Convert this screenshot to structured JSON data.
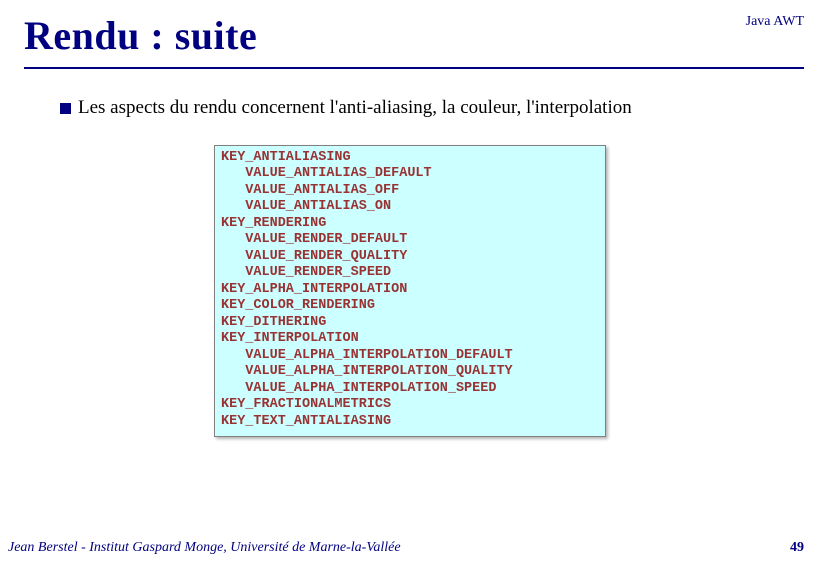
{
  "header": {
    "title": "Rendu : suite",
    "topic": "Java AWT"
  },
  "bullet": {
    "text": "Les aspects du rendu concernent l'anti-aliasing, la couleur, l'interpolation"
  },
  "code": {
    "lines": [
      "KEY_ANTIALIASING",
      "   VALUE_ANTIALIAS_DEFAULT",
      "   VALUE_ANTIALIAS_OFF",
      "   VALUE_ANTIALIAS_ON",
      "KEY_RENDERING",
      "   VALUE_RENDER_DEFAULT",
      "   VALUE_RENDER_QUALITY",
      "   VALUE_RENDER_SPEED",
      "KEY_ALPHA_INTERPOLATION",
      "KEY_COLOR_RENDERING",
      "KEY_DITHERING",
      "KEY_INTERPOLATION",
      "   VALUE_ALPHA_INTERPOLATION_DEFAULT",
      "   VALUE_ALPHA_INTERPOLATION_QUALITY",
      "   VALUE_ALPHA_INTERPOLATION_SPEED",
      "KEY_FRACTIONALMETRICS",
      "KEY_TEXT_ANTIALIASING"
    ]
  },
  "footer": {
    "left": "Jean Berstel  -   Institut Gaspard Monge, Université de Marne-la-Vallée",
    "page": "49"
  },
  "colors": {
    "title": "#000080",
    "rule": "#000080",
    "codebox_bg": "#ccffff",
    "code_text": "#993333",
    "footer": "#000080"
  }
}
